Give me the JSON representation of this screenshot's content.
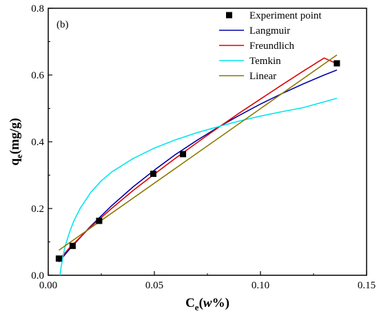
{
  "chart_data": {
    "type": "scatter",
    "panel_label": "(b)",
    "xlabel": {
      "main": "C",
      "sub": "e",
      "open": "(",
      "italic": "w",
      "rest": "%)"
    },
    "ylabel": {
      "main": "q",
      "sub": "e",
      "rest": "(mg/g)"
    },
    "xlim": [
      0,
      0.15
    ],
    "ylim": [
      0,
      0.8
    ],
    "xticks": [
      0.0,
      0.05,
      0.1,
      0.15
    ],
    "xtick_labels": [
      "0.00",
      "0.05",
      "0.10",
      "0.15"
    ],
    "yticks": [
      0.0,
      0.2,
      0.4,
      0.6,
      0.8
    ],
    "ytick_labels": [
      "0.0",
      "0.2",
      "0.4",
      "0.6",
      "0.8"
    ],
    "legend_position": "top-right",
    "points": {
      "name": "Experiment point",
      "color": "#000000",
      "x": [
        0.005,
        0.0115,
        0.024,
        0.0495,
        0.0635,
        0.136
      ],
      "y": [
        0.05,
        0.088,
        0.163,
        0.304,
        0.363,
        0.635
      ]
    },
    "series": [
      {
        "name": "Langmuir",
        "color": "#0000aa",
        "x": [
          0.005,
          0.01,
          0.02,
          0.03,
          0.04,
          0.05,
          0.06,
          0.07,
          0.08,
          0.09,
          0.1,
          0.11,
          0.12,
          0.13,
          0.136
        ],
        "y": [
          0.04,
          0.078,
          0.147,
          0.209,
          0.265,
          0.315,
          0.362,
          0.404,
          0.443,
          0.479,
          0.513,
          0.544,
          0.573,
          0.6,
          0.615
        ]
      },
      {
        "name": "Freundlich",
        "color": "#dd0000",
        "x": [
          0.005,
          0.01,
          0.02,
          0.03,
          0.04,
          0.05,
          0.06,
          0.07,
          0.08,
          0.09,
          0.1,
          0.11,
          0.12,
          0.13,
          0.136
        ],
        "y": [
          0.046,
          0.082,
          0.145,
          0.201,
          0.254,
          0.303,
          0.351,
          0.397,
          0.442,
          0.486,
          0.528,
          0.57,
          0.611,
          0.651,
          0.634
        ]
      },
      {
        "name": "Temkin",
        "color": "#00e5ee",
        "x": [
          0.0055,
          0.006,
          0.007,
          0.008,
          0.01,
          0.012,
          0.015,
          0.02,
          0.025,
          0.03,
          0.04,
          0.05,
          0.06,
          0.07,
          0.08,
          0.09,
          0.1,
          0.11,
          0.12,
          0.136
        ],
        "y": [
          0.0,
          0.022,
          0.058,
          0.088,
          0.128,
          0.162,
          0.2,
          0.248,
          0.283,
          0.31,
          0.35,
          0.381,
          0.406,
          0.427,
          0.445,
          0.462,
          0.477,
          0.49,
          0.502,
          0.53
        ]
      },
      {
        "name": "Linear",
        "color": "#8b7500",
        "x": [
          0.005,
          0.136
        ],
        "y": [
          0.075,
          0.66
        ]
      }
    ]
  }
}
